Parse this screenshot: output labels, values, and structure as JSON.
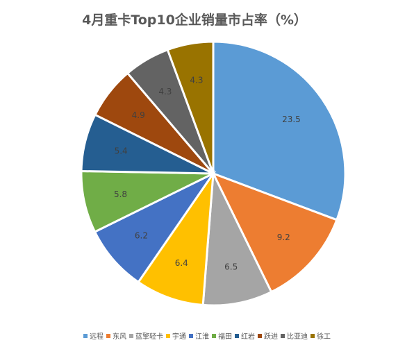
{
  "chart_data": {
    "type": "pie",
    "title": "4月重卡Top10企业销量市占率（%）",
    "categories": [
      "远程",
      "东风",
      "蓝擎轻卡",
      "宇通",
      "江淮",
      "福田",
      "红岩",
      "跃进",
      "比亚迪",
      "徐工"
    ],
    "values": [
      23.5,
      9.2,
      6.5,
      6.4,
      6.2,
      5.8,
      5.4,
      4.9,
      4.3,
      4.3
    ],
    "data_labels": [
      "23.5",
      "9.2",
      "6.5",
      "6.4",
      "6.2",
      "5.8",
      "5.4",
      "4.9",
      "4.3",
      "4.3"
    ],
    "colors": [
      "#5b9bd5",
      "#ed7d31",
      "#a5a5a5",
      "#ffc000",
      "#4472c4",
      "#70ad47",
      "#255e91",
      "#9e480e",
      "#636363",
      "#997300"
    ],
    "legend_position": "bottom",
    "start_angle_deg": 0,
    "direction": "clockwise"
  }
}
